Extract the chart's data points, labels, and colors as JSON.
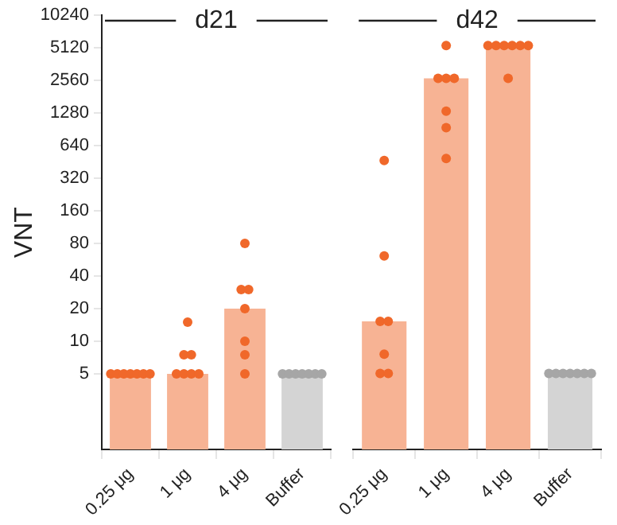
{
  "chart_data": [
    {
      "type": "bar",
      "title": "d21",
      "ylabel": "VNT",
      "log": true,
      "categories": [
        "0.25 μg",
        "1 μg",
        "4 μg",
        "Buffer"
      ],
      "series": [
        {
          "type": "bar",
          "values": [
            5,
            5,
            20,
            5
          ],
          "colors": [
            "#f7b394",
            "#f7b394",
            "#f7b394",
            "#d4d4d4"
          ]
        },
        {
          "type": "scatter",
          "color": "#f0682a",
          "x": [
            "0.25 μg",
            "0.25 μg",
            "0.25 μg",
            "0.25 μg",
            "0.25 μg",
            "0.25 μg",
            "0.25 μg",
            "1 μg",
            "1 μg",
            "1 μg",
            "1 μg",
            "1 μg",
            "1 μg",
            "1 μg",
            "4 μg",
            "4 μg",
            "4 μg",
            "4 μg",
            "4 μg",
            "4 μg",
            "4 μg"
          ],
          "values": [
            5,
            5,
            5,
            5,
            5,
            5,
            5,
            15,
            7.5,
            7.5,
            5,
            5,
            5,
            5,
            80,
            30,
            30,
            20,
            10,
            7.5,
            5
          ]
        },
        {
          "type": "scatter",
          "color": "#a6a6a6",
          "x": [
            "Buffer",
            "Buffer",
            "Buffer",
            "Buffer",
            "Buffer",
            "Buffer",
            "Buffer"
          ],
          "values": [
            5,
            5,
            5,
            5,
            5,
            5,
            5
          ]
        }
      ],
      "ylim": [
        1,
        10240
      ],
      "yticks": [
        5,
        10,
        20,
        40,
        80,
        160,
        320,
        640,
        1280,
        2560,
        5120,
        10240
      ],
      "grid": false,
      "legend": false,
      "marker": "circle"
    },
    {
      "type": "bar",
      "title": "d42",
      "log": true,
      "categories": [
        "0.25 μg",
        "1 μg",
        "4 μg",
        "Buffer"
      ],
      "series": [
        {
          "type": "bar",
          "values": [
            15,
            2560,
            5120,
            5
          ],
          "colors": [
            "#f7b394",
            "#f7b394",
            "#f7b394",
            "#d4d4d4"
          ]
        },
        {
          "type": "scatter",
          "color": "#f0682a",
          "x": [
            "0.25 μg",
            "0.25 μg",
            "0.25 μg",
            "0.25 μg",
            "0.25 μg",
            "0.25 μg",
            "0.25 μg",
            "1 μg",
            "1 μg",
            "1 μg",
            "1 μg",
            "1 μg",
            "1 μg",
            "1 μg",
            "4 μg",
            "4 μg",
            "4 μg",
            "4 μg",
            "4 μg",
            "4 μg",
            "4 μg"
          ],
          "values": [
            450,
            60,
            15,
            15,
            7.5,
            5,
            5,
            5120,
            2560,
            2560,
            2560,
            1280,
            900,
            470,
            5120,
            5120,
            5120,
            5120,
            5120,
            5120,
            2560
          ]
        },
        {
          "type": "scatter",
          "color": "#a6a6a6",
          "x": [
            "Buffer",
            "Buffer",
            "Buffer",
            "Buffer",
            "Buffer",
            "Buffer",
            "Buffer"
          ],
          "values": [
            5,
            5,
            5,
            5,
            5,
            5,
            5
          ]
        }
      ],
      "ylim": [
        1,
        10240
      ],
      "yticks": [
        5,
        10,
        20,
        40,
        80,
        160,
        320,
        640,
        1280,
        2560,
        5120,
        10240
      ],
      "tick_labels": "x",
      "grid": false,
      "legend": false,
      "marker": "circle"
    }
  ]
}
